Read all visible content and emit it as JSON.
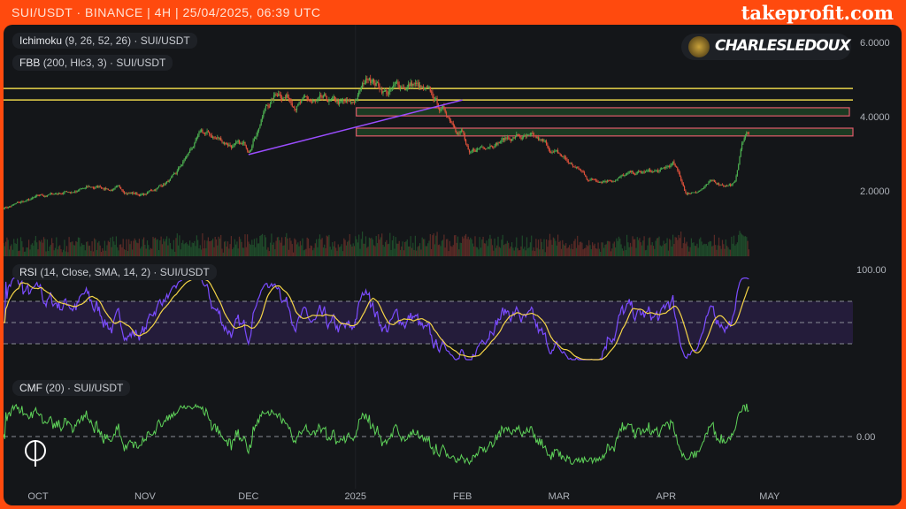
{
  "header": {
    "title": "SUI/USDT · BINANCE | 4H | 25/04/2025, 06:39 UTC",
    "brand": "takeprofit.com"
  },
  "legends": {
    "ichimoku": {
      "name": "Ichimoku",
      "params": "(9, 26, 52, 26) · SUI/USDT"
    },
    "fbb": {
      "name": "FBB",
      "params": "(200, Hlc3, 3) · SUI/USDT"
    },
    "rsi": {
      "name": "RSI",
      "params": "(14, Close, SMA, 14, 2) · SUI/USDT"
    },
    "cmf": {
      "name": "CMF",
      "params": "(20) · SUI/USDT"
    }
  },
  "author": {
    "signature": "CHARLESLEDOUX"
  },
  "colors": {
    "up": "#4caf50",
    "down": "#e0513b",
    "rsi": "#7b4cff",
    "rsi_ma": "#f5d547",
    "cmf": "#5fd35a",
    "level_yellow": "#e8d44a",
    "level_red": "#e05a6a",
    "trend": "#9b4dff"
  },
  "chart_data": [
    {
      "type": "candlestick",
      "pane": "price",
      "y_ticks": [
        "6.0000",
        "4.0000",
        "2.0000"
      ],
      "ylim": [
        0.3,
        6.3
      ],
      "x_ticks": [
        "OCT",
        "NOV",
        "DEC",
        "2025",
        "FEB",
        "MAR",
        "APR",
        "MAY"
      ],
      "close_keypoints": [
        [
          "2024-09-21",
          1.55
        ],
        [
          "2024-10-01",
          1.8
        ],
        [
          "2024-10-10",
          2.0
        ],
        [
          "2024-10-20",
          2.1
        ],
        [
          "2024-11-01",
          1.9
        ],
        [
          "2024-11-10",
          2.4
        ],
        [
          "2024-11-17",
          3.5
        ],
        [
          "2024-11-25",
          3.3
        ],
        [
          "2024-12-01",
          3.1
        ],
        [
          "2024-12-06",
          4.3
        ],
        [
          "2024-12-10",
          4.7
        ],
        [
          "2024-12-20",
          4.3
        ],
        [
          "2024-12-31",
          4.2
        ],
        [
          "2025-01-05",
          5.1
        ],
        [
          "2025-01-10",
          4.7
        ],
        [
          "2025-01-18",
          4.9
        ],
        [
          "2025-01-25",
          4.2
        ],
        [
          "2025-02-01",
          3.7
        ],
        [
          "2025-02-03",
          2.9
        ],
        [
          "2025-02-10",
          3.4
        ],
        [
          "2025-02-17",
          3.5
        ],
        [
          "2025-02-24",
          3.2
        ],
        [
          "2025-03-03",
          2.8
        ],
        [
          "2025-03-10",
          2.3
        ],
        [
          "2025-03-17",
          2.4
        ],
        [
          "2025-03-31",
          2.5
        ],
        [
          "2025-04-03",
          2.7
        ],
        [
          "2025-04-07",
          1.9
        ],
        [
          "2025-04-14",
          2.2
        ],
        [
          "2025-04-21",
          2.2
        ],
        [
          "2025-04-23",
          3.3
        ],
        [
          "2025-04-25",
          3.6
        ]
      ],
      "levels": [
        {
          "kind": "line",
          "value": 4.76
        },
        {
          "kind": "line",
          "value": 4.45
        },
        {
          "kind": "zone",
          "from": 4.02,
          "to": 4.24
        },
        {
          "kind": "zone",
          "from": 3.48,
          "to": 3.69
        }
      ],
      "trendline": [
        [
          "2024-12-01",
          2.98
        ],
        [
          "2025-02-01",
          4.45
        ]
      ]
    },
    {
      "type": "line",
      "pane": "rsi",
      "y_ticks": [
        "100.00"
      ],
      "ylim": [
        0,
        100
      ],
      "bands": [
        30,
        50,
        70
      ],
      "series": [
        {
          "key": "rsi"
        },
        {
          "key": "rsi_ma"
        }
      ]
    },
    {
      "type": "line",
      "pane": "cmf",
      "y_ticks": [
        "0.00"
      ],
      "zero": 0
    }
  ]
}
